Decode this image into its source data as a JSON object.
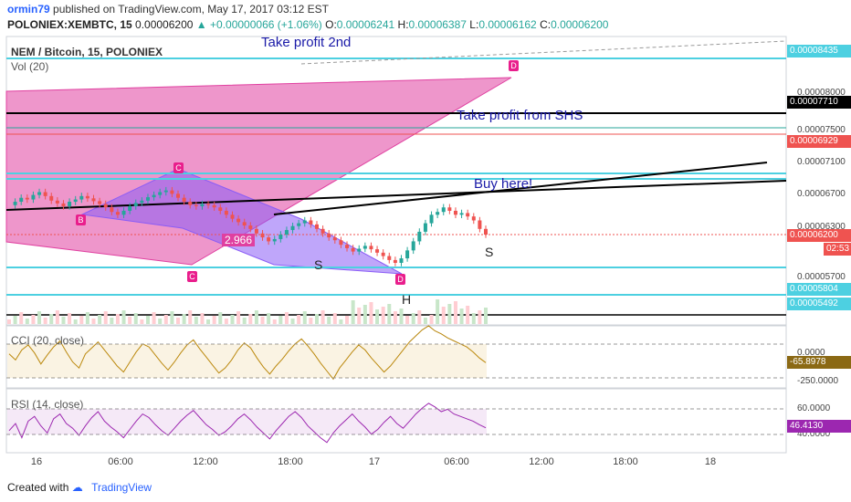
{
  "header": {
    "author": "ormin79",
    "published": "published on TradingView.com, May 17, 2017 03:12 EST",
    "symbol": "POLONIEX:XEMBTC, 15",
    "last": "0.00006200",
    "change": "+0.00000066 (+1.06%)",
    "o_label": "O:",
    "o": "0.00006241",
    "h_label": "H:",
    "h": "0.00006387",
    "l_label": "L:",
    "l": "0.00006162",
    "c_label": "C:",
    "c": "0.00006200"
  },
  "footer": {
    "created_with": "Created with",
    "brand": "TradingView"
  },
  "colors": {
    "up": "#26a69a",
    "down": "#ef5350",
    "pattern_pink": "#e040a0",
    "pattern_purple": "#8a5cf6",
    "cyan": "#4dd0e1",
    "rsi": "#9c27b0",
    "cci": "#b8860b"
  },
  "chart_data": [
    {
      "type": "candlestick",
      "title": "NEM / Bitcoin, 15, POLONIEX",
      "volume_label": "Vol (20)",
      "x_ticks": [
        "16",
        "06:00",
        "12:00",
        "18:00",
        "17",
        "06:00",
        "12:00",
        "18:00",
        "18"
      ],
      "y_ticks": [
        "0.00008000",
        "0.00007500",
        "0.00007100",
        "0.00006700",
        "0.00006300",
        "0.00005700"
      ],
      "y_range": [
        5.2e-05,
        8.7e-05
      ],
      "price_labels": [
        {
          "value": "0.00008435",
          "color": "#4dd0e1"
        },
        {
          "value": "0.00007710",
          "color": "#000000"
        },
        {
          "value": "0.00006929",
          "color": "#ef5350"
        },
        {
          "value": "0.00006200",
          "color": "#ef5350"
        },
        {
          "value": "02:53",
          "color": "#ef5350"
        },
        {
          "value": "0.00005804",
          "color": "#4dd0e1"
        },
        {
          "value": "0.00005492",
          "color": "#4dd0e1"
        }
      ],
      "annotations": [
        "Take profit 2nd",
        "Take profit from SHS",
        "Buy here!",
        "S",
        "S",
        "H",
        "2.966"
      ],
      "pattern_points": [
        "B",
        "C",
        "C",
        "D",
        "D"
      ],
      "close_series": [
        6.72,
        6.78,
        6.85,
        6.82,
        6.9,
        6.95,
        6.88,
        6.8,
        6.75,
        6.7,
        6.78,
        6.82,
        6.88,
        6.84,
        6.79,
        6.74,
        6.68,
        6.6,
        6.55,
        6.62,
        6.7,
        6.76,
        6.8,
        6.86,
        6.9,
        6.95,
        6.98,
        6.92,
        6.85,
        6.78,
        6.72,
        6.7,
        6.74,
        6.72,
        6.68,
        6.62,
        6.55,
        6.48,
        6.42,
        6.36,
        6.3,
        6.22,
        6.15,
        6.08,
        6.12,
        6.2,
        6.28,
        6.35,
        6.4,
        6.45,
        6.38,
        6.3,
        6.22,
        6.15,
        6.1,
        6.02,
        5.96,
        5.9,
        5.95,
        6.0,
        5.94,
        5.88,
        5.82,
        5.75,
        5.7,
        5.78,
        5.92,
        6.08,
        6.25,
        6.4,
        6.55,
        6.6,
        6.68,
        6.62,
        6.55,
        6.58,
        6.52,
        6.45,
        6.3,
        6.2
      ]
    },
    {
      "type": "line",
      "title": "CCI (20, close)",
      "y_ticks": [
        "0.0000",
        "-250.0000"
      ],
      "value_label": "-65.8978",
      "values": [
        20,
        -40,
        60,
        110,
        30,
        -80,
        10,
        90,
        150,
        40,
        -60,
        -120,
        20,
        80,
        140,
        60,
        -20,
        -100,
        -160,
        -60,
        40,
        120,
        90,
        10,
        -70,
        -140,
        -60,
        30,
        110,
        160,
        70,
        -10,
        -90,
        -170,
        -120,
        -40,
        60,
        130,
        80,
        -20,
        -110,
        -180,
        -100,
        -30,
        50,
        120,
        170,
        100,
        20,
        -70,
        -150,
        -230,
        -120,
        -40,
        40,
        110,
        60,
        -20,
        -90,
        -160,
        -100,
        -20,
        60,
        140,
        200,
        260,
        300,
        250,
        220,
        180,
        150,
        120,
        90,
        40,
        -20,
        -66
      ]
    },
    {
      "type": "line",
      "title": "RSI (14, close)",
      "y_ticks": [
        "60.0000",
        "40.0000"
      ],
      "value_label": "46.4130",
      "values": [
        44,
        50,
        38,
        52,
        56,
        48,
        42,
        54,
        58,
        50,
        46,
        40,
        48,
        55,
        60,
        52,
        47,
        43,
        38,
        45,
        52,
        58,
        55,
        49,
        44,
        40,
        46,
        52,
        57,
        61,
        55,
        49,
        45,
        40,
        43,
        48,
        54,
        58,
        53,
        47,
        42,
        37,
        44,
        50,
        56,
        60,
        55,
        48,
        43,
        38,
        34,
        42,
        48,
        53,
        58,
        52,
        47,
        41,
        45,
        51,
        56,
        50,
        46,
        52,
        58,
        63,
        67,
        64,
        60,
        62,
        58,
        56,
        54,
        52,
        49,
        46.4
      ]
    }
  ]
}
